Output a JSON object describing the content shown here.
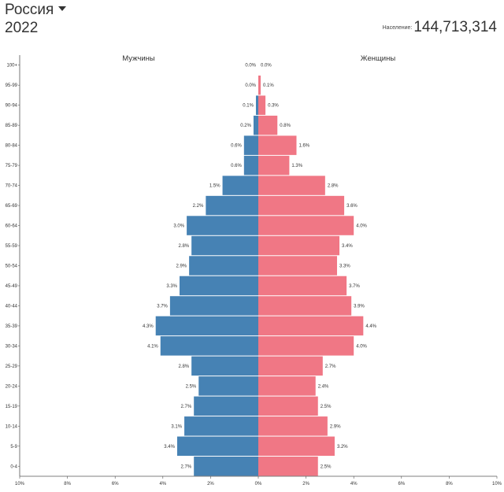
{
  "header": {
    "country": "Россия",
    "year": "2022",
    "population_label": "Население:",
    "population_value": "144,713,314"
  },
  "colors": {
    "male": "#4682b4",
    "female": "#f07785",
    "axis": "#555555",
    "label": "#333333"
  },
  "chart_data": {
    "type": "bar",
    "orientation": "horizontal-population-pyramid",
    "age_groups": [
      "0-4",
      "5-9",
      "10-14",
      "15-19",
      "20-24",
      "25-29",
      "30-34",
      "35-39",
      "40-44",
      "45-49",
      "50-54",
      "55-59",
      "60-64",
      "65-69",
      "70-74",
      "75-79",
      "80-84",
      "85-89",
      "90-94",
      "95-99",
      "100+"
    ],
    "series": [
      {
        "name": "Мужчины",
        "side": "left",
        "values": [
          2.7,
          3.4,
          3.1,
          2.7,
          2.5,
          2.8,
          4.1,
          4.3,
          3.7,
          3.3,
          2.9,
          2.8,
          3.0,
          2.2,
          1.5,
          0.6,
          0.6,
          0.2,
          0.1,
          0.0,
          0.0
        ],
        "labels": [
          "2.7%",
          "3.4%",
          "3.1%",
          "2.7%",
          "2.5%",
          "2.8%",
          "4.1%",
          "4.3%",
          "3.7%",
          "3.3%",
          "2.9%",
          "2.8%",
          "3.0%",
          "2.2%",
          "1.5%",
          "0.6%",
          "0.6%",
          "0.2%",
          "0.1%",
          "0.0%",
          "0.0%"
        ]
      },
      {
        "name": "Женщины",
        "side": "right",
        "values": [
          2.5,
          3.2,
          2.9,
          2.5,
          2.4,
          2.7,
          4.0,
          4.4,
          3.9,
          3.7,
          3.3,
          3.4,
          4.0,
          3.6,
          2.8,
          1.3,
          1.6,
          0.8,
          0.3,
          0.1,
          0.0
        ],
        "labels": [
          "2.5%",
          "3.2%",
          "2.9%",
          "2.5%",
          "2.4%",
          "2.7%",
          "4.0%",
          "4.4%",
          "3.9%",
          "3.7%",
          "3.3%",
          "3.4%",
          "4.0%",
          "3.6%",
          "2.8%",
          "1.3%",
          "1.6%",
          "0.8%",
          "0.3%",
          "0.1%",
          "0.0%"
        ]
      }
    ],
    "x_ticks": [
      "10%",
      "8%",
      "6%",
      "4%",
      "2%",
      "0%",
      "2%",
      "4%",
      "6%",
      "8%",
      "10%"
    ],
    "xlim": [
      -10,
      10
    ],
    "grid": false
  }
}
